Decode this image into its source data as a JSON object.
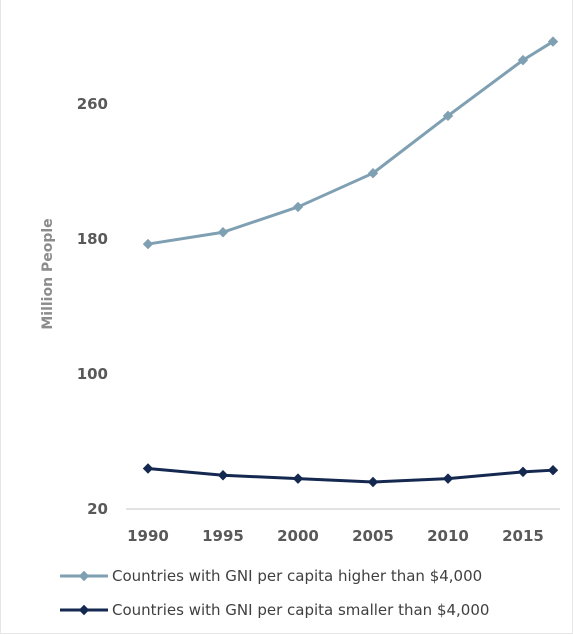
{
  "chart_data": {
    "type": "line",
    "ylabel": "Million People",
    "xlabel": "",
    "x": [
      1990,
      1995,
      2000,
      2005,
      2010,
      2015,
      2017
    ],
    "x_ticks": [
      "1990",
      "1995",
      "2000",
      "2005",
      "2010",
      "2015"
    ],
    "y_ticks": [
      "20",
      "100",
      "180",
      "260"
    ],
    "ylim": [
      20,
      300
    ],
    "grid": false,
    "legend_position": "bottom",
    "series": [
      {
        "name": "Countries with GNI per capita higher than $4,000",
        "color": "#7f9fb2",
        "marker": "diamond",
        "values": [
          177,
          184,
          199,
          219,
          253,
          286,
          297
        ]
      },
      {
        "name": "Countries with GNI per capita smaller than $4,000",
        "color": "#142850",
        "marker": "diamond",
        "values": [
          44,
          40,
          38,
          36,
          38,
          42,
          43
        ]
      }
    ]
  }
}
